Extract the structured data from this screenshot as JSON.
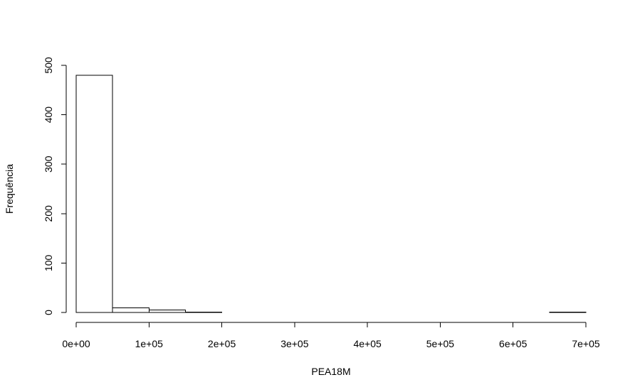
{
  "chart_data": {
    "type": "bar",
    "title": "",
    "xlabel": "PEA18M",
    "ylabel": "Frequência",
    "bins": [
      {
        "start": 0,
        "end": 50000,
        "count": 480
      },
      {
        "start": 50000,
        "end": 100000,
        "count": 9
      },
      {
        "start": 100000,
        "end": 150000,
        "count": 5
      },
      {
        "start": 150000,
        "end": 200000,
        "count": 1
      },
      {
        "start": 200000,
        "end": 250000,
        "count": 0
      },
      {
        "start": 250000,
        "end": 300000,
        "count": 0
      },
      {
        "start": 300000,
        "end": 350000,
        "count": 0
      },
      {
        "start": 350000,
        "end": 400000,
        "count": 0
      },
      {
        "start": 400000,
        "end": 450000,
        "count": 0
      },
      {
        "start": 450000,
        "end": 500000,
        "count": 0
      },
      {
        "start": 500000,
        "end": 550000,
        "count": 0
      },
      {
        "start": 550000,
        "end": 600000,
        "count": 0
      },
      {
        "start": 600000,
        "end": 650000,
        "count": 0
      },
      {
        "start": 650000,
        "end": 700000,
        "count": 1
      }
    ],
    "xlim": [
      0,
      700000
    ],
    "ylim": [
      0,
      500
    ],
    "x_ticks": [
      0,
      100000,
      200000,
      300000,
      400000,
      500000,
      600000,
      700000
    ],
    "x_tick_labels": [
      "0e+00",
      "1e+05",
      "2e+05",
      "3e+05",
      "4e+05",
      "5e+05",
      "6e+05",
      "7e+05"
    ],
    "y_ticks": [
      0,
      100,
      200,
      300,
      400,
      500
    ],
    "y_tick_labels": [
      "0",
      "100",
      "200",
      "300",
      "400",
      "500"
    ],
    "grid": false,
    "bar_fill": "#ffffff",
    "bar_stroke": "#000000"
  }
}
